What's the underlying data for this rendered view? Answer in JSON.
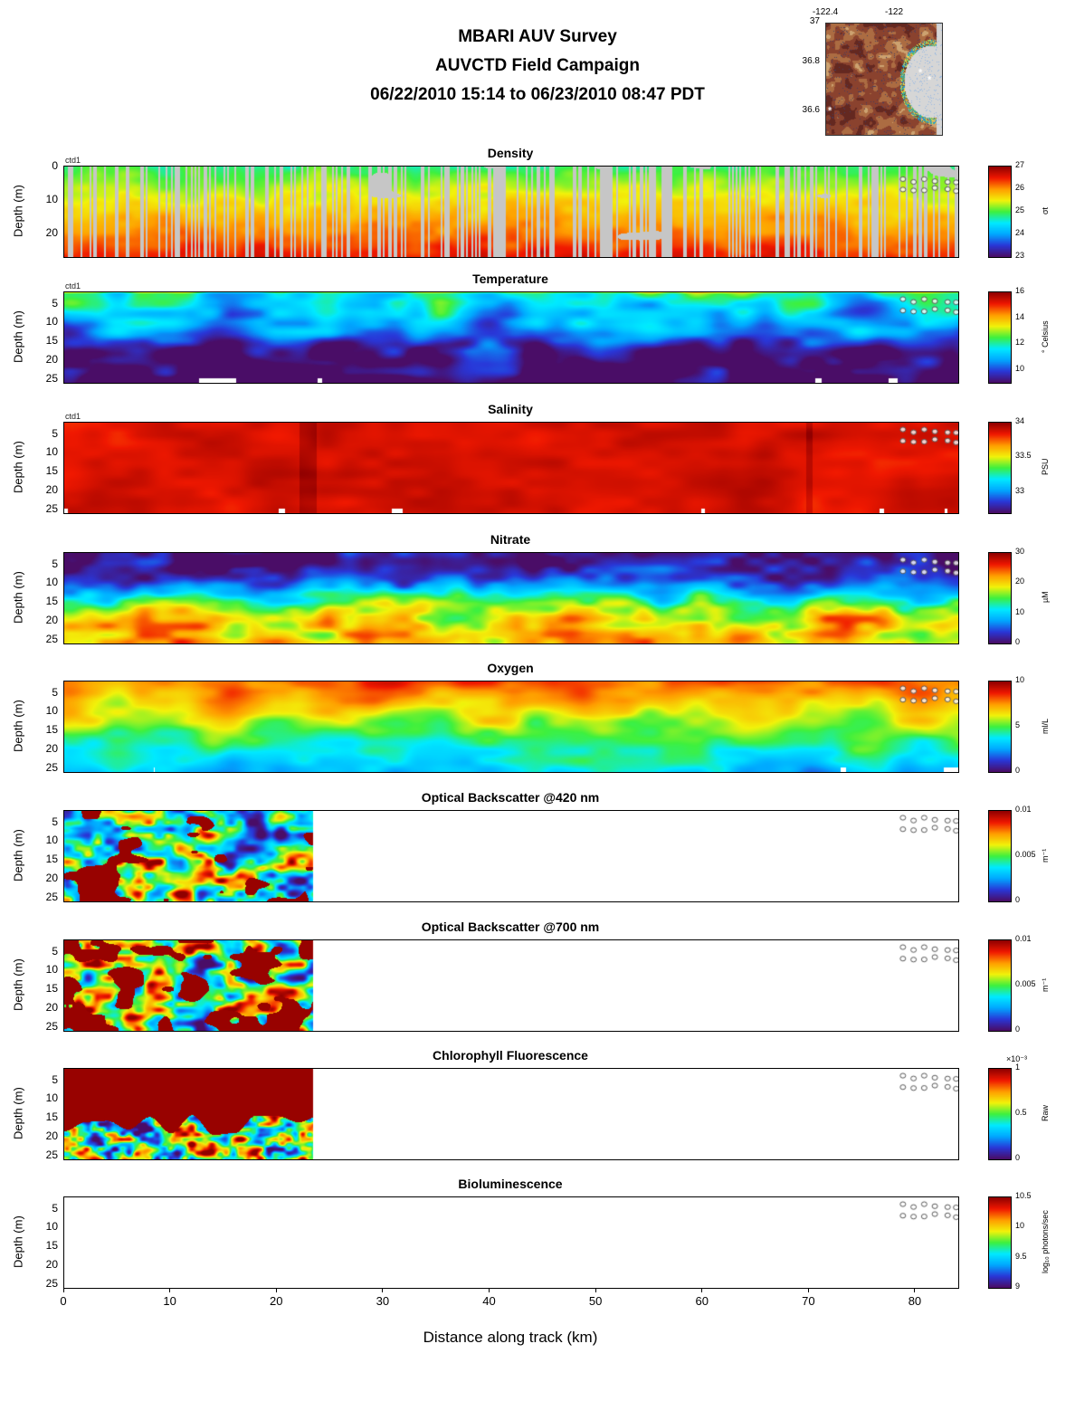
{
  "header": {
    "line1": "MBARI AUV Survey",
    "line2": "AUVCTD Field Campaign",
    "line3": "06/22/2010 15:14  to 06/23/2010 08:47 PDT"
  },
  "map_inset": {
    "lon_ticks": [
      "-122.4",
      "-122"
    ],
    "lat_ticks": [
      "37",
      "36.8",
      "36.6"
    ]
  },
  "axes": {
    "xlabel": "Distance along track (km)",
    "ylabel": "Depth (m)",
    "x_ticks": [
      0,
      10,
      20,
      30,
      40,
      50,
      60,
      70,
      80
    ],
    "x_range_km": [
      0,
      84
    ]
  },
  "annotations": {
    "marker_km": [
      78.8,
      79.8,
      80.8,
      81.8,
      83.0,
      83.8
    ],
    "marker_depths_m": [
      4.2,
      6.8
    ]
  },
  "colors": {
    "missing_data_gray": "#c6c6c6",
    "background": "#ffffff"
  },
  "colormap": [
    "#4a0d67",
    "#2937d8",
    "#00a8ff",
    "#00eaff",
    "#3ef03e",
    "#f2f20a",
    "#ff9d00",
    "#f01800",
    "#900000"
  ],
  "chart_data": [
    {
      "type": "heatmap",
      "title": "Density",
      "instrument_label": "ctd1",
      "ylabel": "Depth (m)",
      "y_ticks": [
        0,
        10,
        20
      ],
      "ylim": [
        0,
        27
      ],
      "x_extent_km": 84,
      "field": "density",
      "colorbar": {
        "min": 23,
        "max": 27,
        "ticks": [
          27,
          26,
          25,
          24,
          23
        ],
        "unit": "σt",
        "multiplier": ""
      }
    },
    {
      "type": "heatmap",
      "title": "Temperature",
      "instrument_label": "ctd1",
      "ylabel": "Depth (m)",
      "y_ticks": [
        5,
        10,
        15,
        20,
        25
      ],
      "ylim": [
        2,
        26
      ],
      "x_extent_km": 84,
      "field": "temperature",
      "colorbar": {
        "min": 9,
        "max": 16,
        "ticks": [
          16,
          14,
          12,
          10
        ],
        "unit": "° Celsius",
        "multiplier": ""
      }
    },
    {
      "type": "heatmap",
      "title": "Salinity",
      "instrument_label": "ctd1",
      "ylabel": "Depth (m)",
      "y_ticks": [
        5,
        10,
        15,
        20,
        25
      ],
      "ylim": [
        2,
        26
      ],
      "x_extent_km": 84,
      "field": "salinity",
      "colorbar": {
        "min": 32.7,
        "max": 34,
        "ticks": [
          34,
          33.5,
          33
        ],
        "unit": "PSU",
        "multiplier": ""
      }
    },
    {
      "type": "heatmap",
      "title": "Nitrate",
      "instrument_label": "",
      "ylabel": "Depth (m)",
      "y_ticks": [
        5,
        10,
        15,
        20,
        25
      ],
      "ylim": [
        2,
        26
      ],
      "x_extent_km": 84,
      "field": "nitrate",
      "colorbar": {
        "min": 0,
        "max": 30,
        "ticks": [
          30,
          20,
          10,
          0
        ],
        "unit": "µM",
        "multiplier": ""
      }
    },
    {
      "type": "heatmap",
      "title": "Oxygen",
      "instrument_label": "",
      "ylabel": "Depth (m)",
      "y_ticks": [
        5,
        10,
        15,
        20,
        25
      ],
      "ylim": [
        2,
        26
      ],
      "x_extent_km": 84,
      "field": "oxygen",
      "colorbar": {
        "min": 0,
        "max": 10,
        "ticks": [
          10,
          5,
          0
        ],
        "unit": "ml/L",
        "multiplier": ""
      }
    },
    {
      "type": "heatmap",
      "title": "Optical Backscatter @420 nm",
      "instrument_label": "",
      "ylabel": "Depth (m)",
      "y_ticks": [
        5,
        10,
        15,
        20,
        25
      ],
      "ylim": [
        2,
        26
      ],
      "x_extent_km": 23.3,
      "field": "obs420",
      "colorbar": {
        "min": 0,
        "max": 0.01,
        "ticks": [
          0.01,
          0.005,
          0
        ],
        "unit": "m⁻¹",
        "multiplier": ""
      }
    },
    {
      "type": "heatmap",
      "title": "Optical Backscatter @700 nm",
      "instrument_label": "",
      "ylabel": "Depth (m)",
      "y_ticks": [
        5,
        10,
        15,
        20,
        25
      ],
      "ylim": [
        2,
        26
      ],
      "x_extent_km": 23.3,
      "field": "obs700",
      "colorbar": {
        "min": 0,
        "max": 0.01,
        "ticks": [
          0.01,
          0.005,
          0
        ],
        "unit": "m⁻¹",
        "multiplier": ""
      }
    },
    {
      "type": "heatmap",
      "title": "Chlorophyll Fluorescence",
      "instrument_label": "",
      "ylabel": "Depth (m)",
      "y_ticks": [
        5,
        10,
        15,
        20,
        25
      ],
      "ylim": [
        2,
        26
      ],
      "x_extent_km": 23.3,
      "field": "chl",
      "colorbar": {
        "min": 0,
        "max": 1,
        "ticks": [
          1,
          0.5,
          0
        ],
        "unit": "Raw",
        "multiplier": "×10⁻³"
      }
    },
    {
      "type": "heatmap",
      "title": "Bioluminescence",
      "instrument_label": "",
      "ylabel": "Depth (m)",
      "y_ticks": [
        5,
        10,
        15,
        20,
        25
      ],
      "ylim": [
        2,
        26
      ],
      "x_extent_km": 0,
      "field": "none",
      "colorbar": {
        "min": 9,
        "max": 10.5,
        "ticks": [
          10.5,
          10,
          9.5,
          9
        ],
        "unit": "log₁₀ photons/sec",
        "multiplier": ""
      }
    }
  ]
}
